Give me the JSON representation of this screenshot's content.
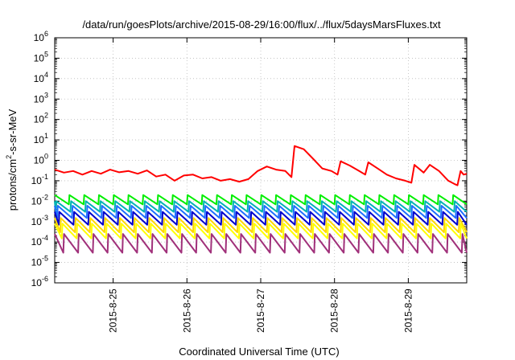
{
  "chart_data": {
    "type": "line",
    "title": "/data/run/goesPlots/archive/2015-08-29/16:00/flux/../flux/5daysMarsFluxes.txt",
    "xlabel": "Coordinated Universal Time (UTC)",
    "ylabel": {
      "base": "protons/cm",
      "sup": "2",
      "rest": "-s-sr-MeV"
    },
    "yscale": "log",
    "ylim_exponents": [
      -6,
      6
    ],
    "y_tick_exponents": [
      -6,
      -5,
      -4,
      -3,
      -2,
      -1,
      0,
      1,
      2,
      3,
      4,
      5,
      6
    ],
    "y_tick_base": "10",
    "x_start": "2015-08-24 05:00",
    "x_end": "2015-08-29 19:00",
    "x_ticks": [
      {
        "label": "2015-8-25",
        "datetime": "2015-08-25 00:00"
      },
      {
        "label": "2015-8-26",
        "datetime": "2015-08-26 00:00"
      },
      {
        "label": "2015-8-27",
        "datetime": "2015-08-27 00:00"
      },
      {
        "label": "2015-8-28",
        "datetime": "2015-08-28 00:00"
      },
      {
        "label": "2015-8-29",
        "datetime": "2015-08-29 00:00"
      }
    ],
    "grid": true,
    "sawtooth_period_hours": 4.8,
    "series": [
      {
        "color": "#ff0000",
        "points": [
          [
            "2015-08-24 05:00",
            0.35
          ],
          [
            "2015-08-24 08:00",
            0.25
          ],
          [
            "2015-08-24 11:00",
            0.3
          ],
          [
            "2015-08-24 14:00",
            0.2
          ],
          [
            "2015-08-24 17:00",
            0.3
          ],
          [
            "2015-08-24 20:00",
            0.22
          ],
          [
            "2015-08-24 23:00",
            0.35
          ],
          [
            "2015-08-25 02:00",
            0.26
          ],
          [
            "2015-08-25 05:00",
            0.3
          ],
          [
            "2015-08-25 08:00",
            0.22
          ],
          [
            "2015-08-25 11:00",
            0.32
          ],
          [
            "2015-08-25 14:00",
            0.16
          ],
          [
            "2015-08-25 17:00",
            0.2
          ],
          [
            "2015-08-25 20:00",
            0.1
          ],
          [
            "2015-08-25 23:00",
            0.18
          ],
          [
            "2015-08-26 02:00",
            0.2
          ],
          [
            "2015-08-26 05:00",
            0.13
          ],
          [
            "2015-08-26 08:00",
            0.15
          ],
          [
            "2015-08-26 11:00",
            0.1
          ],
          [
            "2015-08-26 14:00",
            0.12
          ],
          [
            "2015-08-26 17:00",
            0.09
          ],
          [
            "2015-08-26 20:00",
            0.12
          ],
          [
            "2015-08-26 23:00",
            0.3
          ],
          [
            "2015-08-27 02:00",
            0.5
          ],
          [
            "2015-08-27 05:00",
            0.35
          ],
          [
            "2015-08-27 08:00",
            0.3
          ],
          [
            "2015-08-27 10:00",
            0.15
          ],
          [
            "2015-08-27 11:00",
            5.0
          ],
          [
            "2015-08-27 14:00",
            3.5
          ],
          [
            "2015-08-27 17:00",
            1.2
          ],
          [
            "2015-08-27 20:00",
            0.4
          ],
          [
            "2015-08-27 23:00",
            0.3
          ],
          [
            "2015-08-28 01:00",
            0.2
          ],
          [
            "2015-08-28 02:00",
            0.9
          ],
          [
            "2015-08-28 05:00",
            0.55
          ],
          [
            "2015-08-28 08:00",
            0.3
          ],
          [
            "2015-08-28 10:00",
            0.2
          ],
          [
            "2015-08-28 11:00",
            0.8
          ],
          [
            "2015-08-28 14:00",
            0.4
          ],
          [
            "2015-08-28 17:00",
            0.2
          ],
          [
            "2015-08-28 20:00",
            0.13
          ],
          [
            "2015-08-28 23:00",
            0.1
          ],
          [
            "2015-08-29 01:00",
            0.08
          ],
          [
            "2015-08-29 02:00",
            0.6
          ],
          [
            "2015-08-29 05:00",
            0.25
          ],
          [
            "2015-08-29 07:00",
            0.6
          ],
          [
            "2015-08-29 10:00",
            0.3
          ],
          [
            "2015-08-29 13:00",
            0.1
          ],
          [
            "2015-08-29 15:00",
            0.07
          ],
          [
            "2015-08-29 16:00",
            0.06
          ],
          [
            "2015-08-29 17:00",
            0.3
          ],
          [
            "2015-08-29 18:00",
            0.2
          ],
          [
            "2015-08-29 19:00",
            0.22
          ]
        ]
      },
      {
        "color": "#00ee00",
        "sawtooth": {
          "peak": 0.02,
          "trough": 0.007,
          "phase_hours": 0.0
        }
      },
      {
        "color": "#00b3b3",
        "sawtooth": {
          "peak": 0.01,
          "trough": 0.003,
          "phase_hours": 0.5
        }
      },
      {
        "color": "#1e6fff",
        "sawtooth": {
          "peak": 0.006,
          "trough": 0.0015,
          "phase_hours": 1.0
        }
      },
      {
        "color": "#0000cc",
        "sawtooth": {
          "peak": 0.003,
          "trough": 0.0007,
          "phase_hours": 1.5
        }
      },
      {
        "color": "#ffd700",
        "sawtooth": {
          "peak": 0.0015,
          "trough": 0.0003,
          "phase_hours": 2.0
        }
      },
      {
        "color": "#ffff00",
        "sawtooth": {
          "peak": 0.0008,
          "trough": 0.00015,
          "phase_hours": 2.5
        }
      },
      {
        "color": "#a0307a",
        "sawtooth": {
          "peak": 0.00025,
          "trough": 3e-05,
          "phase_hours": 3.0
        }
      }
    ]
  }
}
